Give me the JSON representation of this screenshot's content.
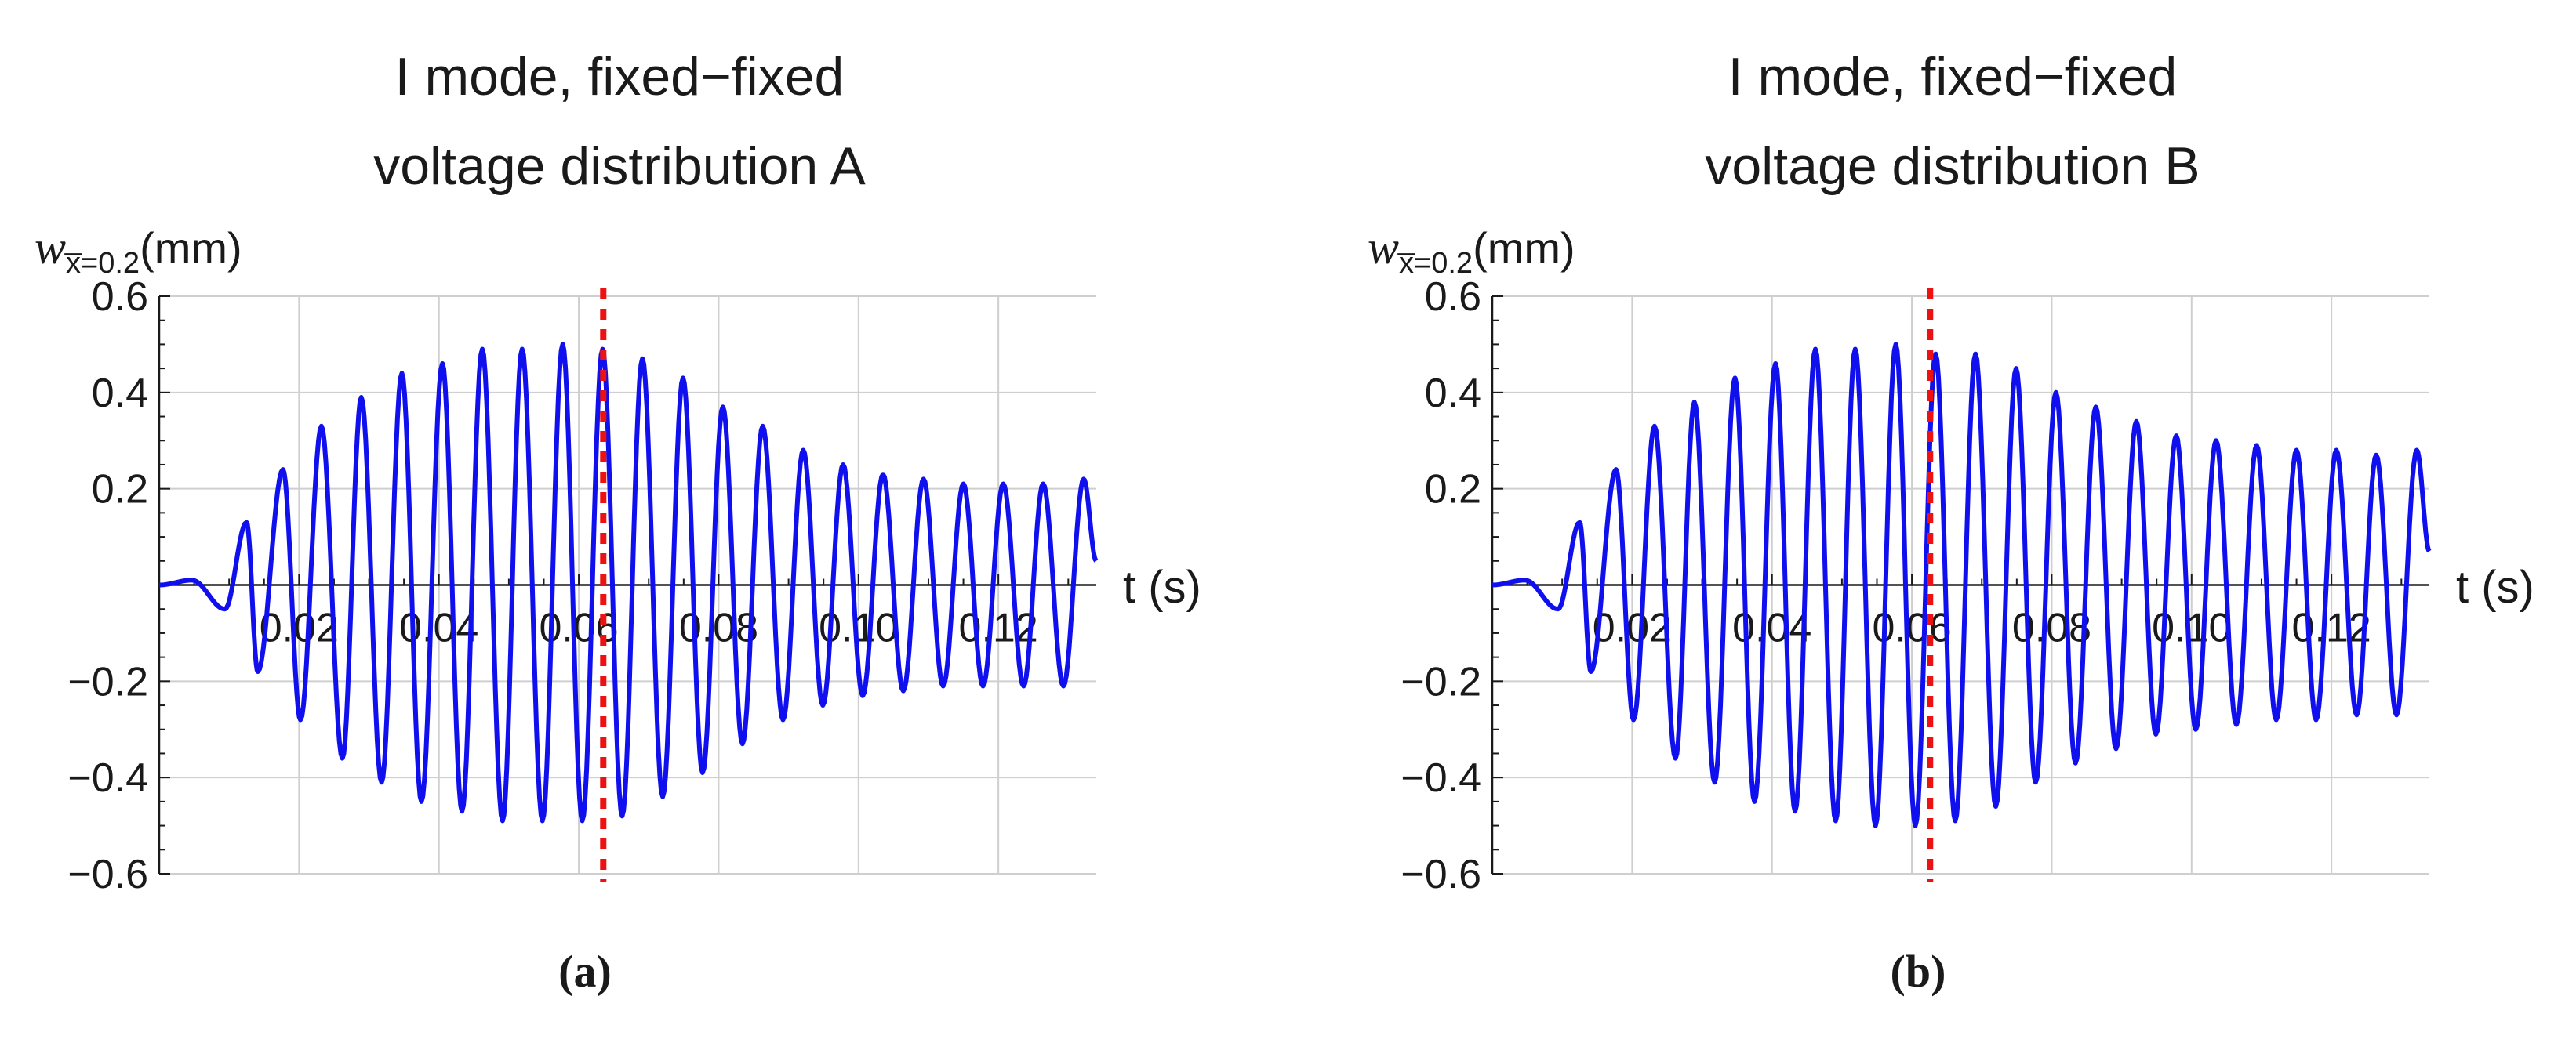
{
  "chart_data": [
    {
      "type": "line",
      "title": "I mode, fixed−fixed",
      "subtitle": "voltage distribution A",
      "ylabel": "(mm)",
      "ylabel_symbol": "w",
      "ylabel_subscript": "x̅=0.2",
      "xlabel": "t (s)",
      "caption": "(a)",
      "xlim": [
        0,
        0.134
      ],
      "ylim": [
        -0.6,
        0.6
      ],
      "grid": true,
      "x_ticks": [
        0.02,
        0.04,
        0.06,
        0.08,
        0.1,
        0.12
      ],
      "x_tick_labels": [
        "0.02",
        "0.04",
        "0.06",
        "0.08",
        "0.10",
        "0.12"
      ],
      "y_ticks": [
        -0.6,
        -0.4,
        -0.2,
        0.2,
        0.4,
        0.6
      ],
      "y_tick_labels": [
        "−0.6",
        "−0.4",
        "−0.2",
        "0.2",
        "0.4",
        "0.6"
      ],
      "series_color": "#1010ee",
      "marker_color": "#ee1111",
      "marker_line_x": 0.0635,
      "peaks": {
        "x": [
          0.0047,
          0.0094,
          0.0125,
          0.0141,
          0.0177,
          0.0202,
          0.0232,
          0.0262,
          0.0289,
          0.0318,
          0.0347,
          0.0375,
          0.0405,
          0.0433,
          0.0462,
          0.0491,
          0.0519,
          0.0548,
          0.0577,
          0.0605,
          0.0634,
          0.0662,
          0.0691,
          0.072,
          0.0749,
          0.0777,
          0.0806,
          0.0834,
          0.0863,
          0.0892,
          0.0921,
          0.0949,
          0.0978,
          0.1006,
          0.1035,
          0.1064,
          0.1093,
          0.1121,
          0.115,
          0.1178,
          0.1207,
          0.1236,
          0.1264,
          0.1293,
          0.1322,
          0.134
        ],
        "y": [
          0.01,
          -0.05,
          0.13,
          -0.18,
          0.24,
          -0.28,
          0.33,
          -0.36,
          0.39,
          -0.41,
          0.44,
          -0.45,
          0.46,
          -0.47,
          0.49,
          -0.49,
          0.49,
          -0.49,
          0.5,
          -0.49,
          0.49,
          -0.48,
          0.47,
          -0.44,
          0.43,
          -0.39,
          0.37,
          -0.33,
          0.33,
          -0.28,
          0.28,
          -0.25,
          0.25,
          -0.23,
          0.23,
          -0.22,
          0.22,
          -0.21,
          0.21,
          -0.21,
          0.21,
          -0.21,
          0.21,
          -0.21,
          0.22,
          0.05
        ]
      }
    },
    {
      "type": "line",
      "title": "I mode, fixed−fixed",
      "subtitle": "voltage distribution B",
      "ylabel": "(mm)",
      "ylabel_symbol": "w",
      "ylabel_subscript": "x̅=0.2",
      "xlabel": "t (s)",
      "caption": "(b)",
      "xlim": [
        0,
        0.134
      ],
      "ylim": [
        -0.6,
        0.6
      ],
      "grid": true,
      "x_ticks": [
        0.02,
        0.04,
        0.06,
        0.08,
        0.1,
        0.12
      ],
      "x_tick_labels": [
        "0.02",
        "0.04",
        "0.06",
        "0.08",
        "0.10",
        "0.12"
      ],
      "y_ticks": [
        -0.6,
        -0.4,
        -0.2,
        0.2,
        0.4,
        0.6
      ],
      "y_tick_labels": [
        "−0.6",
        "−0.4",
        "−0.2",
        "0.2",
        "0.4",
        "0.6"
      ],
      "series_color": "#1010ee",
      "marker_color": "#ee1111",
      "marker_line_x": 0.0626,
      "peaks": {
        "x": [
          0.0047,
          0.0094,
          0.0125,
          0.0141,
          0.0177,
          0.0202,
          0.0232,
          0.0262,
          0.0289,
          0.0318,
          0.0347,
          0.0375,
          0.0405,
          0.0433,
          0.0462,
          0.0491,
          0.0519,
          0.0548,
          0.0577,
          0.0605,
          0.0634,
          0.0662,
          0.0691,
          0.072,
          0.0749,
          0.0777,
          0.0806,
          0.0834,
          0.0863,
          0.0892,
          0.0921,
          0.0949,
          0.0978,
          0.1006,
          0.1035,
          0.1064,
          0.1093,
          0.1121,
          0.115,
          0.1178,
          0.1207,
          0.1236,
          0.1264,
          0.1293,
          0.1322,
          0.134
        ],
        "y": [
          0.01,
          -0.05,
          0.13,
          -0.18,
          0.24,
          -0.28,
          0.33,
          -0.36,
          0.38,
          -0.41,
          0.43,
          -0.45,
          0.46,
          -0.47,
          0.49,
          -0.49,
          0.49,
          -0.5,
          0.5,
          -0.5,
          0.48,
          -0.49,
          0.48,
          -0.46,
          0.45,
          -0.41,
          0.4,
          -0.37,
          0.37,
          -0.34,
          0.34,
          -0.31,
          0.31,
          -0.3,
          0.3,
          -0.29,
          0.29,
          -0.28,
          0.28,
          -0.28,
          0.28,
          -0.27,
          0.27,
          -0.27,
          0.28,
          0.07
        ]
      }
    }
  ]
}
